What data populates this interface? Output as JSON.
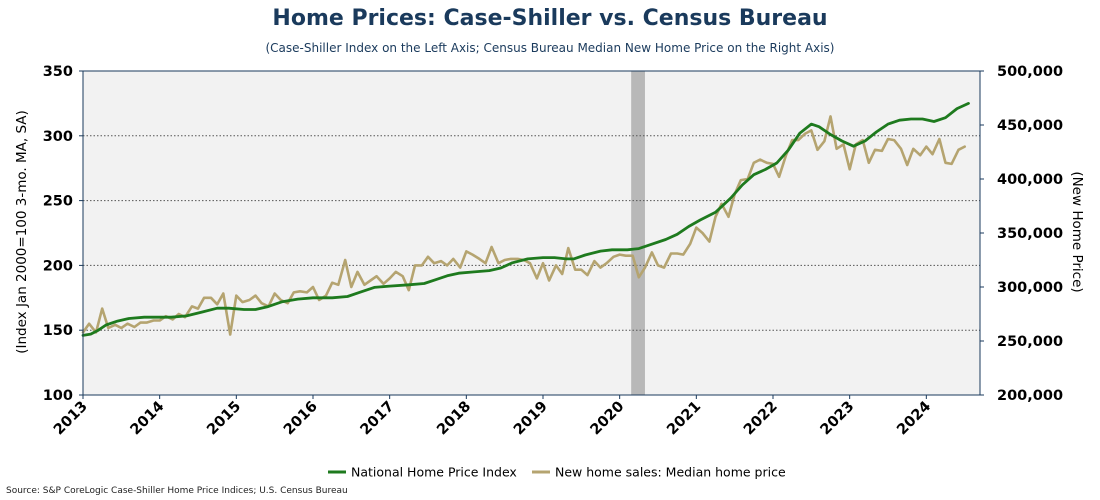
{
  "chart_data": {
    "type": "line",
    "title": "Home Prices: Case-Shiller vs. Census Bureau",
    "subtitle": "(Case-Shiller Index on the Left Axis; Census Bureau Median New Home Price on the Right Axis)",
    "ylabel_left": "(Index Jan 2000=100 3-mo. MA, SA)",
    "ylabel_right": "(New Home Price)",
    "ylim_left": [
      100,
      350
    ],
    "ylim_right": [
      200000,
      500000
    ],
    "yticks_left": [
      "100",
      "150",
      "200",
      "250",
      "300",
      "350"
    ],
    "yticks_right": [
      "200,000",
      "250,000",
      "300,000",
      "350,000",
      "400,000",
      "450,000",
      "500,000"
    ],
    "xlim": [
      2013.0,
      2024.7
    ],
    "xticks": [
      "2013",
      "2014",
      "2015",
      "2016",
      "2017",
      "2018",
      "2019",
      "2020",
      "2021",
      "2022",
      "2023",
      "2024"
    ],
    "grid": "horizontal dotted",
    "recession_shading": [
      2020.15,
      2020.33
    ],
    "legend_position": "bottom",
    "series": [
      {
        "name": "National Home Price Index",
        "axis": "left",
        "color": "#1e7a1e",
        "points": [
          [
            2013.0,
            146
          ],
          [
            2013.1,
            147
          ],
          [
            2013.2,
            150
          ],
          [
            2013.3,
            154
          ],
          [
            2013.45,
            157
          ],
          [
            2013.6,
            159
          ],
          [
            2013.8,
            160
          ],
          [
            2014.0,
            160
          ],
          [
            2014.15,
            160
          ],
          [
            2014.35,
            161
          ],
          [
            2014.55,
            164
          ],
          [
            2014.75,
            167
          ],
          [
            2014.9,
            167
          ],
          [
            2015.1,
            166
          ],
          [
            2015.25,
            166
          ],
          [
            2015.4,
            168
          ],
          [
            2015.6,
            172
          ],
          [
            2015.8,
            174
          ],
          [
            2016.0,
            175
          ],
          [
            2016.25,
            175
          ],
          [
            2016.45,
            176
          ],
          [
            2016.6,
            179
          ],
          [
            2016.8,
            183
          ],
          [
            2017.0,
            184
          ],
          [
            2017.25,
            185
          ],
          [
            2017.45,
            186
          ],
          [
            2017.6,
            189
          ],
          [
            2017.75,
            192
          ],
          [
            2017.9,
            194
          ],
          [
            2018.1,
            195
          ],
          [
            2018.3,
            196
          ],
          [
            2018.45,
            198
          ],
          [
            2018.6,
            202
          ],
          [
            2018.8,
            205
          ],
          [
            2019.0,
            206
          ],
          [
            2019.15,
            206
          ],
          [
            2019.3,
            205
          ],
          [
            2019.4,
            205
          ],
          [
            2019.55,
            208
          ],
          [
            2019.75,
            211
          ],
          [
            2019.9,
            212
          ],
          [
            2020.1,
            212
          ],
          [
            2020.25,
            213
          ],
          [
            2020.4,
            216
          ],
          [
            2020.6,
            220
          ],
          [
            2020.75,
            224
          ],
          [
            2020.9,
            230
          ],
          [
            2021.05,
            235
          ],
          [
            2021.25,
            241
          ],
          [
            2021.45,
            252
          ],
          [
            2021.6,
            262
          ],
          [
            2021.75,
            270
          ],
          [
            2021.9,
            274
          ],
          [
            2022.05,
            279
          ],
          [
            2022.2,
            289
          ],
          [
            2022.35,
            302
          ],
          [
            2022.5,
            309
          ],
          [
            2022.6,
            307
          ],
          [
            2022.75,
            301
          ],
          [
            2022.9,
            296
          ],
          [
            2023.05,
            292
          ],
          [
            2023.2,
            296
          ],
          [
            2023.35,
            303
          ],
          [
            2023.5,
            309
          ],
          [
            2023.65,
            312
          ],
          [
            2023.8,
            313
          ],
          [
            2023.95,
            313
          ],
          [
            2024.1,
            311
          ],
          [
            2024.25,
            314
          ],
          [
            2024.4,
            321
          ],
          [
            2024.55,
            325
          ]
        ]
      },
      {
        "name": "New home sales: Median home price",
        "axis": "right",
        "color": "#b5a470",
        "points": [
          [
            2013.0,
            258000
          ],
          [
            2013.08,
            266000
          ],
          [
            2013.17,
            258000
          ],
          [
            2013.25,
            280000
          ],
          [
            2013.33,
            262000
          ],
          [
            2013.42,
            265000
          ],
          [
            2013.5,
            262000
          ],
          [
            2013.58,
            266000
          ],
          [
            2013.67,
            263000
          ],
          [
            2013.75,
            267000
          ],
          [
            2013.83,
            267000
          ],
          [
            2013.92,
            269000
          ],
          [
            2014.0,
            269000
          ],
          [
            2014.08,
            273000
          ],
          [
            2014.17,
            270000
          ],
          [
            2014.25,
            275000
          ],
          [
            2014.33,
            272000
          ],
          [
            2014.42,
            282000
          ],
          [
            2014.5,
            280000
          ],
          [
            2014.58,
            290000
          ],
          [
            2014.67,
            290000
          ],
          [
            2014.75,
            284000
          ],
          [
            2014.83,
            294000
          ],
          [
            2014.92,
            256000
          ],
          [
            2015.0,
            292000
          ],
          [
            2015.08,
            286000
          ],
          [
            2015.17,
            288000
          ],
          [
            2015.25,
            292000
          ],
          [
            2015.33,
            285000
          ],
          [
            2015.42,
            282000
          ],
          [
            2015.5,
            294000
          ],
          [
            2015.58,
            288000
          ],
          [
            2015.67,
            285000
          ],
          [
            2015.75,
            295000
          ],
          [
            2015.83,
            296000
          ],
          [
            2015.92,
            295000
          ],
          [
            2016.0,
            300000
          ],
          [
            2016.08,
            288000
          ],
          [
            2016.17,
            292000
          ],
          [
            2016.25,
            304000
          ],
          [
            2016.33,
            302000
          ],
          [
            2016.42,
            325000
          ],
          [
            2016.5,
            300000
          ],
          [
            2016.58,
            314000
          ],
          [
            2016.67,
            302000
          ],
          [
            2016.75,
            306000
          ],
          [
            2016.83,
            310000
          ],
          [
            2016.92,
            303000
          ],
          [
            2017.0,
            308000
          ],
          [
            2017.08,
            314000
          ],
          [
            2017.17,
            310000
          ],
          [
            2017.25,
            297000
          ],
          [
            2017.33,
            320000
          ],
          [
            2017.42,
            320000
          ],
          [
            2017.5,
            328000
          ],
          [
            2017.58,
            322000
          ],
          [
            2017.67,
            324000
          ],
          [
            2017.75,
            320000
          ],
          [
            2017.83,
            326000
          ],
          [
            2017.92,
            318000
          ],
          [
            2018.0,
            333000
          ],
          [
            2018.08,
            330000
          ],
          [
            2018.17,
            326000
          ],
          [
            2018.25,
            322000
          ],
          [
            2018.33,
            337000
          ],
          [
            2018.42,
            322000
          ],
          [
            2018.5,
            325000
          ],
          [
            2018.58,
            326000
          ],
          [
            2018.67,
            326000
          ],
          [
            2018.75,
            325000
          ],
          [
            2018.83,
            322000
          ],
          [
            2018.92,
            308000
          ],
          [
            2019.0,
            322000
          ],
          [
            2019.08,
            306000
          ],
          [
            2019.17,
            320000
          ],
          [
            2019.25,
            312000
          ],
          [
            2019.33,
            336000
          ],
          [
            2019.42,
            316000
          ],
          [
            2019.5,
            316000
          ],
          [
            2019.58,
            311000
          ],
          [
            2019.67,
            324000
          ],
          [
            2019.75,
            318000
          ],
          [
            2019.83,
            322000
          ],
          [
            2019.92,
            328000
          ],
          [
            2020.0,
            330000
          ],
          [
            2020.08,
            329000
          ],
          [
            2020.17,
            329000
          ],
          [
            2020.25,
            309000
          ],
          [
            2020.33,
            318000
          ],
          [
            2020.42,
            332000
          ],
          [
            2020.5,
            320000
          ],
          [
            2020.58,
            318000
          ],
          [
            2020.67,
            331000
          ],
          [
            2020.75,
            331000
          ],
          [
            2020.83,
            330000
          ],
          [
            2020.92,
            340000
          ],
          [
            2021.0,
            355000
          ],
          [
            2021.08,
            350000
          ],
          [
            2021.17,
            342000
          ],
          [
            2021.25,
            365000
          ],
          [
            2021.33,
            377000
          ],
          [
            2021.42,
            365000
          ],
          [
            2021.5,
            386000
          ],
          [
            2021.58,
            399000
          ],
          [
            2021.67,
            400000
          ],
          [
            2021.75,
            415000
          ],
          [
            2021.83,
            418000
          ],
          [
            2021.92,
            415000
          ],
          [
            2022.0,
            414000
          ],
          [
            2022.08,
            402000
          ],
          [
            2022.17,
            422000
          ],
          [
            2022.25,
            436000
          ],
          [
            2022.33,
            436000
          ],
          [
            2022.42,
            442000
          ],
          [
            2022.5,
            445000
          ],
          [
            2022.58,
            427000
          ],
          [
            2022.67,
            435000
          ],
          [
            2022.75,
            458000
          ],
          [
            2022.83,
            428000
          ],
          [
            2022.92,
            432000
          ],
          [
            2023.0,
            409000
          ],
          [
            2023.08,
            432000
          ],
          [
            2023.17,
            436000
          ],
          [
            2023.25,
            415000
          ],
          [
            2023.33,
            427000
          ],
          [
            2023.42,
            426000
          ],
          [
            2023.5,
            437000
          ],
          [
            2023.58,
            436000
          ],
          [
            2023.67,
            428000
          ],
          [
            2023.75,
            413000
          ],
          [
            2023.83,
            428000
          ],
          [
            2023.92,
            422000
          ],
          [
            2024.0,
            430000
          ],
          [
            2024.08,
            423000
          ],
          [
            2024.17,
            437000
          ],
          [
            2024.25,
            415000
          ],
          [
            2024.33,
            414000
          ],
          [
            2024.42,
            427000
          ],
          [
            2024.5,
            430000
          ]
        ]
      }
    ]
  },
  "source": "Source: S&P CoreLogic Case-Shiller Home Price Indices; U.S. Census Bureau"
}
